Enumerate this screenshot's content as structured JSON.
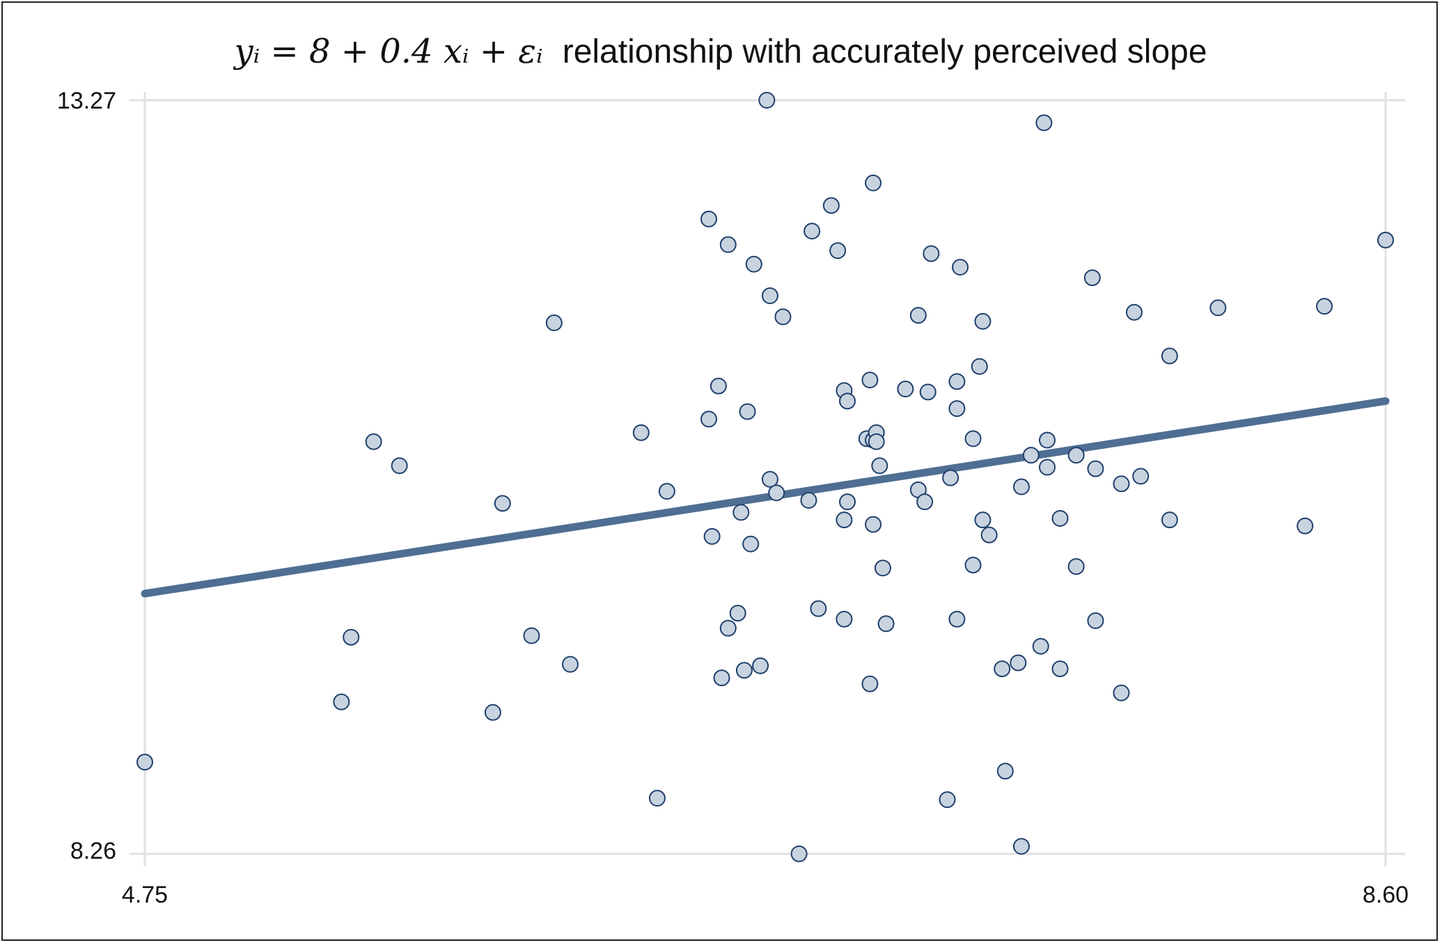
{
  "chart_data": {
    "type": "scatter",
    "title": {
      "math": "yᵢ = 8 + 0.4 xᵢ + εᵢ",
      "text": "relationship with accurately perceived slope"
    },
    "xlabel": "",
    "ylabel": "",
    "xlim": [
      4.75,
      8.6
    ],
    "ylim": [
      8.26,
      13.27
    ],
    "x_ticks": [
      "4.75",
      "8.60"
    ],
    "y_ticks": [
      "13.27",
      "8.26"
    ],
    "grid": true,
    "fit_line": {
      "x": [
        4.75,
        8.6
      ],
      "y": [
        9.99,
        11.27
      ]
    },
    "colors": {
      "line": "#4f6e93",
      "point_fill": "#c8d3e0",
      "point_stroke": "#1f3f6b",
      "grid": "#e0e0e0"
    },
    "points": [
      {
        "x": 4.75,
        "y": 8.87
      },
      {
        "x": 5.36,
        "y": 9.27
      },
      {
        "x": 5.39,
        "y": 9.7
      },
      {
        "x": 5.46,
        "y": 11.0
      },
      {
        "x": 5.54,
        "y": 10.84
      },
      {
        "x": 5.83,
        "y": 9.2
      },
      {
        "x": 5.86,
        "y": 10.59
      },
      {
        "x": 5.95,
        "y": 9.71
      },
      {
        "x": 6.02,
        "y": 11.79
      },
      {
        "x": 6.07,
        "y": 9.52
      },
      {
        "x": 6.29,
        "y": 11.06
      },
      {
        "x": 6.34,
        "y": 8.63
      },
      {
        "x": 6.37,
        "y": 10.67
      },
      {
        "x": 6.5,
        "y": 11.15
      },
      {
        "x": 6.5,
        "y": 12.48
      },
      {
        "x": 6.51,
        "y": 10.37
      },
      {
        "x": 6.53,
        "y": 11.37
      },
      {
        "x": 6.54,
        "y": 9.43
      },
      {
        "x": 6.56,
        "y": 12.31
      },
      {
        "x": 6.56,
        "y": 9.76
      },
      {
        "x": 6.59,
        "y": 9.86
      },
      {
        "x": 6.6,
        "y": 10.53
      },
      {
        "x": 6.61,
        "y": 9.48
      },
      {
        "x": 6.62,
        "y": 11.2
      },
      {
        "x": 6.63,
        "y": 10.32
      },
      {
        "x": 6.64,
        "y": 12.18
      },
      {
        "x": 6.66,
        "y": 9.51
      },
      {
        "x": 6.68,
        "y": 13.27
      },
      {
        "x": 6.69,
        "y": 11.97
      },
      {
        "x": 6.69,
        "y": 10.75
      },
      {
        "x": 6.71,
        "y": 10.66
      },
      {
        "x": 6.73,
        "y": 11.83
      },
      {
        "x": 6.78,
        "y": 8.26
      },
      {
        "x": 6.81,
        "y": 10.61
      },
      {
        "x": 6.82,
        "y": 12.4
      },
      {
        "x": 6.84,
        "y": 9.89
      },
      {
        "x": 6.88,
        "y": 12.57
      },
      {
        "x": 6.9,
        "y": 12.27
      },
      {
        "x": 6.92,
        "y": 11.34
      },
      {
        "x": 6.92,
        "y": 10.48
      },
      {
        "x": 6.92,
        "y": 9.82
      },
      {
        "x": 6.93,
        "y": 10.6
      },
      {
        "x": 6.93,
        "y": 11.27
      },
      {
        "x": 6.99,
        "y": 11.02
      },
      {
        "x": 7.0,
        "y": 11.41
      },
      {
        "x": 7.0,
        "y": 9.39
      },
      {
        "x": 7.01,
        "y": 11.01
      },
      {
        "x": 7.01,
        "y": 10.45
      },
      {
        "x": 7.01,
        "y": 12.72
      },
      {
        "x": 7.02,
        "y": 11.06
      },
      {
        "x": 7.02,
        "y": 11.0
      },
      {
        "x": 7.03,
        "y": 10.84
      },
      {
        "x": 7.04,
        "y": 10.16
      },
      {
        "x": 7.05,
        "y": 9.79
      },
      {
        "x": 7.11,
        "y": 11.35
      },
      {
        "x": 7.15,
        "y": 11.84
      },
      {
        "x": 7.15,
        "y": 10.68
      },
      {
        "x": 7.17,
        "y": 10.6
      },
      {
        "x": 7.18,
        "y": 11.33
      },
      {
        "x": 7.19,
        "y": 12.25
      },
      {
        "x": 7.24,
        "y": 8.62
      },
      {
        "x": 7.25,
        "y": 10.76
      },
      {
        "x": 7.27,
        "y": 11.22
      },
      {
        "x": 7.27,
        "y": 11.4
      },
      {
        "x": 7.27,
        "y": 9.82
      },
      {
        "x": 7.28,
        "y": 12.16
      },
      {
        "x": 7.32,
        "y": 11.02
      },
      {
        "x": 7.32,
        "y": 10.18
      },
      {
        "x": 7.34,
        "y": 11.5
      },
      {
        "x": 7.35,
        "y": 11.8
      },
      {
        "x": 7.35,
        "y": 10.48
      },
      {
        "x": 7.37,
        "y": 10.38
      },
      {
        "x": 7.41,
        "y": 9.49
      },
      {
        "x": 7.42,
        "y": 8.81
      },
      {
        "x": 7.46,
        "y": 9.53
      },
      {
        "x": 7.47,
        "y": 10.7
      },
      {
        "x": 7.47,
        "y": 8.31
      },
      {
        "x": 7.5,
        "y": 10.91
      },
      {
        "x": 7.53,
        "y": 9.64
      },
      {
        "x": 7.54,
        "y": 13.12
      },
      {
        "x": 7.55,
        "y": 11.01
      },
      {
        "x": 7.55,
        "y": 10.83
      },
      {
        "x": 7.59,
        "y": 9.49
      },
      {
        "x": 7.59,
        "y": 10.49
      },
      {
        "x": 7.64,
        "y": 10.17
      },
      {
        "x": 7.64,
        "y": 10.91
      },
      {
        "x": 7.69,
        "y": 12.09
      },
      {
        "x": 7.7,
        "y": 10.82
      },
      {
        "x": 7.7,
        "y": 9.81
      },
      {
        "x": 7.78,
        "y": 10.72
      },
      {
        "x": 7.78,
        "y": 9.33
      },
      {
        "x": 7.82,
        "y": 11.86
      },
      {
        "x": 7.84,
        "y": 10.77
      },
      {
        "x": 7.93,
        "y": 11.57
      },
      {
        "x": 7.93,
        "y": 10.48
      },
      {
        "x": 8.08,
        "y": 11.89
      },
      {
        "x": 8.35,
        "y": 10.44
      },
      {
        "x": 8.41,
        "y": 11.9
      },
      {
        "x": 8.6,
        "y": 12.34
      }
    ]
  }
}
